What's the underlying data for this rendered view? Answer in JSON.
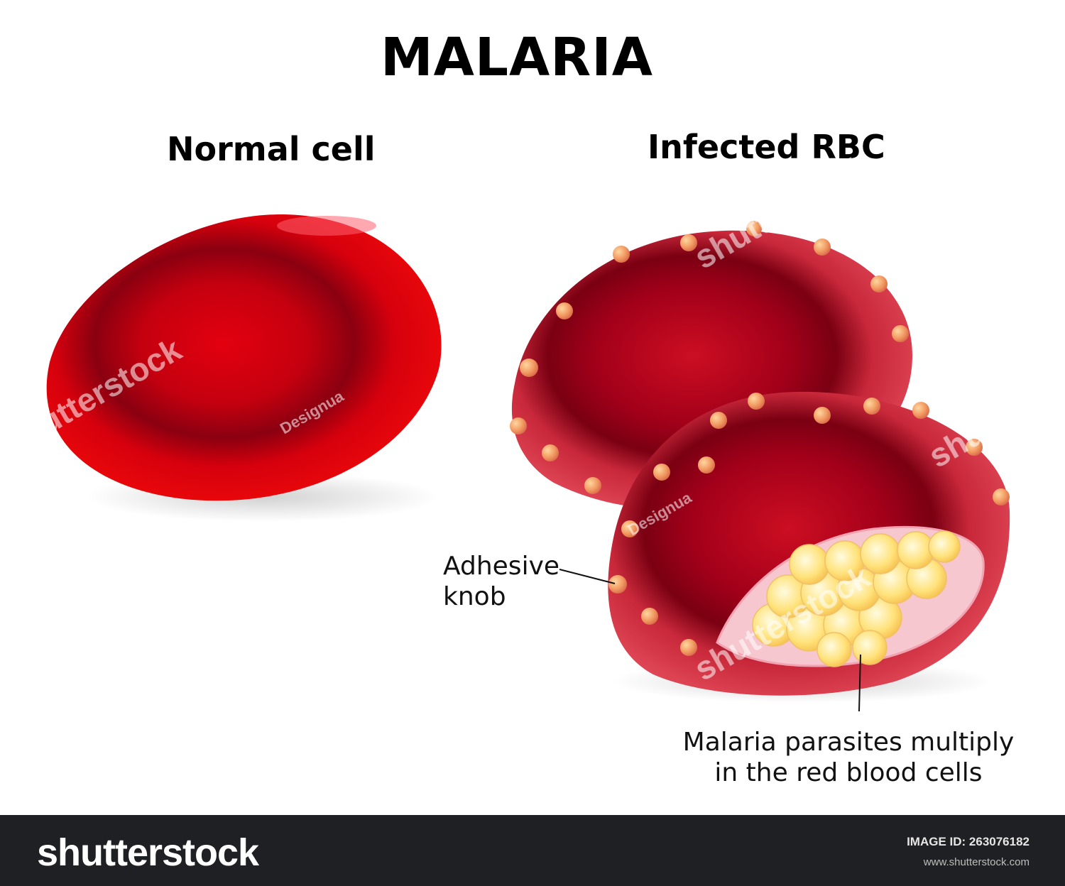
{
  "title": "MALARIA",
  "panels": {
    "normal": {
      "heading": "Normal cell"
    },
    "infected": {
      "heading": "Infected RBC"
    }
  },
  "labels": {
    "adhesive_knob": [
      "Adhesive",
      "knob"
    ],
    "parasites": [
      "Malaria parasites multiply",
      "in the red blood cells"
    ]
  },
  "watermark": {
    "brand": "shutterstock",
    "author": "Designua"
  },
  "footer": {
    "brand": "shutterstock",
    "image_id_label": "IMAGE ID:",
    "image_id": "263076182",
    "url": "www.shutterstock.com"
  },
  "colors": {
    "cell_red": "#e3000f",
    "cell_dark": "#8a0010",
    "infected_red": "#d93a4a",
    "knob": "#f0a060",
    "parasite": "#ffe79a",
    "footer_bg": "#1f2024"
  }
}
